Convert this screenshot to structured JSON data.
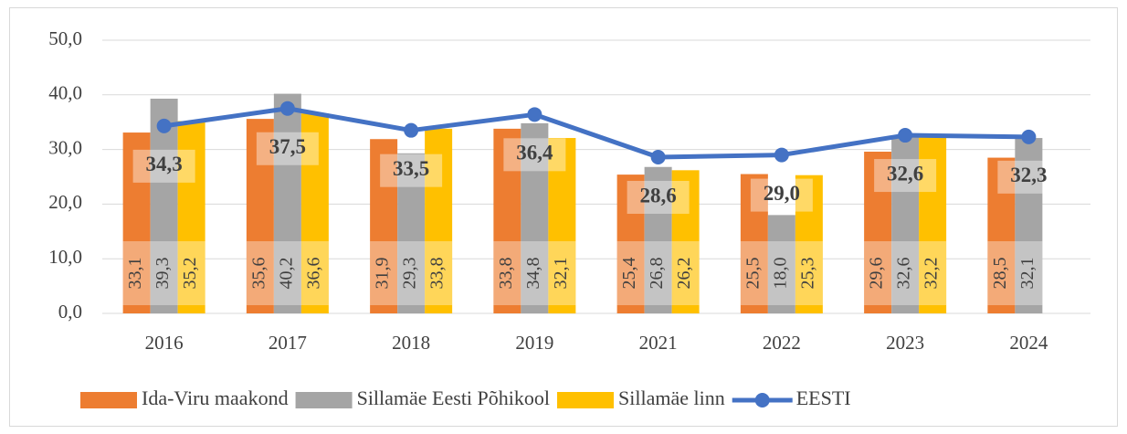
{
  "chart_data": {
    "type": "bar",
    "categories": [
      "2016",
      "2017",
      "2018",
      "2019",
      "2021",
      "2022",
      "2023",
      "2024"
    ],
    "series": [
      {
        "name": "Ida-Viru maakond",
        "color": "#ed7d31",
        "values": [
          33.1,
          35.6,
          31.9,
          33.8,
          25.4,
          25.5,
          29.6,
          28.5
        ],
        "value_labels": [
          "33,1",
          "35,6",
          "31,9",
          "33,8",
          "25,4",
          "25,5",
          "29,6",
          "28,5"
        ]
      },
      {
        "name": "Sillamäe Eesti Põhikool",
        "color": "#a5a5a5",
        "values": [
          39.3,
          40.2,
          29.3,
          34.8,
          26.8,
          18.0,
          32.6,
          32.1
        ],
        "value_labels": [
          "39,3",
          "40,2",
          "29,3",
          "34,8",
          "26,8",
          "18,0",
          "32,6",
          "32,1"
        ]
      },
      {
        "name": "Sillamäe linn",
        "color": "#ffc000",
        "values": [
          35.2,
          36.6,
          33.8,
          32.1,
          26.2,
          25.3,
          32.2,
          null
        ],
        "value_labels": [
          "35,2",
          "36,6",
          "33,8",
          "32,1",
          "26,2",
          "25,3",
          "32,2",
          null
        ]
      },
      {
        "name": "EESTI",
        "color": "#4472c4",
        "type": "line",
        "values": [
          34.3,
          37.5,
          33.5,
          36.4,
          28.6,
          29.0,
          32.6,
          32.3
        ],
        "value_labels": [
          "34,3",
          "37,5",
          "33,5",
          "36,4",
          "28,6",
          "29,0",
          "32,6",
          "32,3"
        ]
      }
    ],
    "ylim": [
      0,
      50
    ],
    "yticks": [
      {
        "value": 0,
        "label": "0,0"
      },
      {
        "value": 10,
        "label": "10,0"
      },
      {
        "value": 20,
        "label": "20,0"
      },
      {
        "value": 30,
        "label": "30,0"
      },
      {
        "value": 40,
        "label": "40,0"
      },
      {
        "value": 50,
        "label": "50,0"
      }
    ],
    "grid": true,
    "legend": "bottom"
  }
}
